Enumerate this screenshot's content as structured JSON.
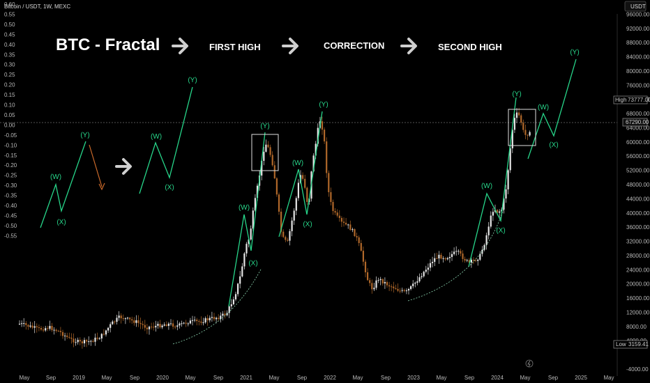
{
  "header": {
    "symbol_text": "Bitcoin / USDT, 1W, MEXC",
    "currency": "USDT",
    "high_label": "High",
    "high_value": "73777.00",
    "current_value": "67290.00",
    "low_label": "Low",
    "low_value": "3159.41"
  },
  "annotations": {
    "title": "BTC - Fractal",
    "phases": [
      "FIRST HIGH",
      "CORRECTION",
      "SECOND HIGH"
    ]
  },
  "colors": {
    "background": "#000000",
    "wave_green": "#27d68a",
    "bull_candle": "#e6e6e6",
    "bear_candle": "#b0682a",
    "box_stroke": "#e0e0e0",
    "arrow_gray": "#cfcfcf",
    "orange_arrow": "#c9692a"
  },
  "chart_data": {
    "type": "candlestick",
    "title": "BTC - Fractal",
    "x_tick_labels": [
      "May",
      "Sep",
      "2019",
      "May",
      "Sep",
      "2020",
      "May",
      "Sep",
      "2021",
      "May",
      "Sep",
      "2022",
      "May",
      "Sep",
      "2023",
      "May",
      "Sep",
      "2024",
      "May",
      "Sep",
      "2025",
      "May"
    ],
    "left_axis": {
      "ticks": [
        "0.60",
        "0.55",
        "0.50",
        "0.45",
        "0.40",
        "0.35",
        "0.30",
        "0.25",
        "0.20",
        "0.15",
        "0.10",
        "0.05",
        "0.00",
        "-0.05",
        "-0.10",
        "-0.15",
        "-0.20",
        "-0.25",
        "-0.30",
        "-0.35",
        "-0.40",
        "-0.45",
        "-0.50",
        "-0.55"
      ],
      "range": [
        -0.55,
        0.6
      ]
    },
    "right_axis": {
      "ticks": [
        "96000.00",
        "92000.00",
        "88000.00",
        "84000.00",
        "80000.00",
        "76000.00",
        "72000.00",
        "68000.00",
        "64000.00",
        "60000.00",
        "56000.00",
        "52000.00",
        "48000.00",
        "44000.00",
        "40000.00",
        "36000.00",
        "32000.00",
        "28000.00",
        "24000.00",
        "20000.00",
        "16000.00",
        "12000.00",
        "8000.00",
        "4000.00",
        "-4000.00"
      ],
      "range": [
        -4000,
        100000
      ]
    },
    "key_levels": {
      "high": 73777.0,
      "current": 67290.0,
      "low": 3159.41
    },
    "wave_labels": {
      "fractal_template": [
        "(W)",
        "(X)",
        "(Y)"
      ],
      "projection_template": [
        "(W)",
        "(X)",
        "(Y)"
      ],
      "first_cycle": [
        "(W)",
        "(X)",
        "(Y)",
        "(W)",
        "(X)",
        "(Y)"
      ],
      "second_cycle": [
        "(W)",
        "(X)",
        "(Y)",
        "(W)",
        "(X)",
        "(Y)"
      ]
    }
  }
}
